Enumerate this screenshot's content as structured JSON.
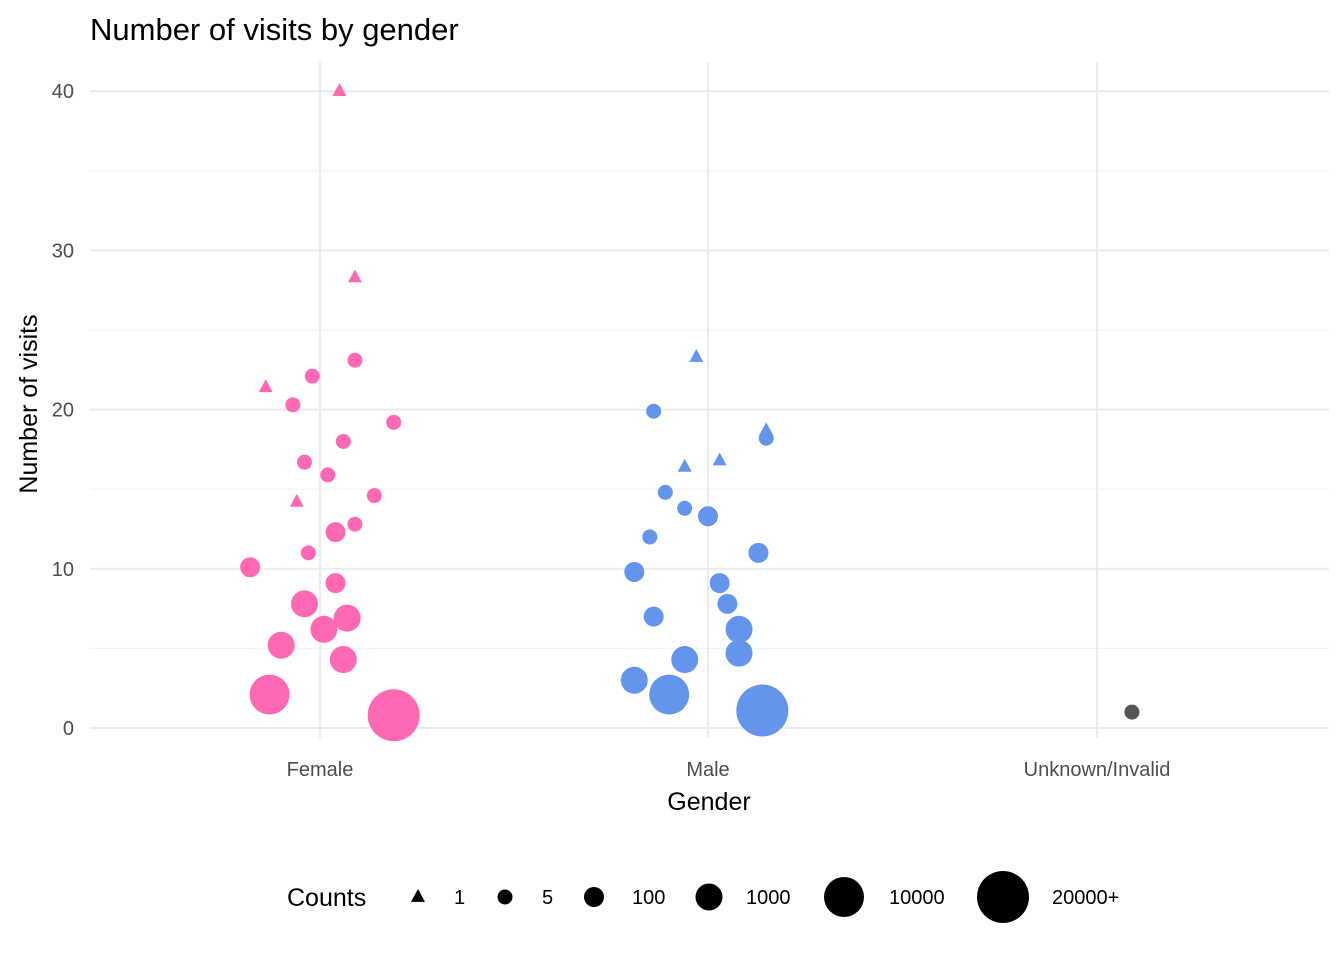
{
  "chart_data": {
    "type": "scatter",
    "title": "Number of visits by gender",
    "xlabel": "Gender",
    "ylabel": "Number of visits",
    "categories": [
      "Female",
      "Male",
      "Unknown/Invalid"
    ],
    "ylim": [
      -1.5,
      41.5
    ],
    "yticks": [
      0,
      10,
      20,
      30,
      40
    ],
    "grid": true,
    "legend_position": "bottom",
    "legend": {
      "title": "Counts",
      "entries": [
        {
          "label": "1",
          "shape": "triangle",
          "size_key": "1"
        },
        {
          "label": "5",
          "shape": "circle",
          "size_key": "5"
        },
        {
          "label": "100",
          "shape": "circle",
          "size_key": "100"
        },
        {
          "label": "1000",
          "shape": "circle",
          "size_key": "1000"
        },
        {
          "label": "10000",
          "shape": "circle",
          "size_key": "10000"
        },
        {
          "label": "20000+",
          "shape": "circle",
          "size_key": "20000+"
        }
      ]
    },
    "colors": {
      "Female": "#ff69b4",
      "Male": "#6495ed",
      "Unknown/Invalid": "#555555",
      "legend": "#000000"
    },
    "series": [
      {
        "category": "Female",
        "points": [
          {
            "offset": 0.05,
            "visits": 40,
            "counts": "1",
            "shape": "triangle"
          },
          {
            "offset": 0.09,
            "visits": 28.3,
            "counts": "1",
            "shape": "triangle"
          },
          {
            "offset": 0.09,
            "visits": 23.1,
            "counts": "5",
            "shape": "circle"
          },
          {
            "offset": -0.02,
            "visits": 22.1,
            "counts": "5",
            "shape": "circle"
          },
          {
            "offset": -0.14,
            "visits": 21.4,
            "counts": "1",
            "shape": "triangle"
          },
          {
            "offset": -0.07,
            "visits": 20.3,
            "counts": "5",
            "shape": "circle"
          },
          {
            "offset": 0.19,
            "visits": 19.2,
            "counts": "5",
            "shape": "circle"
          },
          {
            "offset": 0.06,
            "visits": 18,
            "counts": "5",
            "shape": "circle"
          },
          {
            "offset": -0.04,
            "visits": 16.7,
            "counts": "5",
            "shape": "circle"
          },
          {
            "offset": 0.02,
            "visits": 15.9,
            "counts": "5",
            "shape": "circle"
          },
          {
            "offset": 0.14,
            "visits": 14.6,
            "counts": "5",
            "shape": "circle"
          },
          {
            "offset": -0.06,
            "visits": 14.2,
            "counts": "1",
            "shape": "triangle"
          },
          {
            "offset": 0.09,
            "visits": 12.8,
            "counts": "5",
            "shape": "circle"
          },
          {
            "offset": 0.04,
            "visits": 12.3,
            "counts": "100",
            "shape": "circle"
          },
          {
            "offset": -0.03,
            "visits": 11,
            "counts": "5",
            "shape": "circle"
          },
          {
            "offset": -0.18,
            "visits": 10.1,
            "counts": "100",
            "shape": "circle"
          },
          {
            "offset": 0.04,
            "visits": 9.1,
            "counts": "100",
            "shape": "circle"
          },
          {
            "offset": -0.04,
            "visits": 7.8,
            "counts": "1000",
            "shape": "circle"
          },
          {
            "offset": 0.07,
            "visits": 6.9,
            "counts": "1000",
            "shape": "circle"
          },
          {
            "offset": 0.01,
            "visits": 6.2,
            "counts": "1000",
            "shape": "circle"
          },
          {
            "offset": -0.1,
            "visits": 5.2,
            "counts": "1000",
            "shape": "circle"
          },
          {
            "offset": 0.06,
            "visits": 4.3,
            "counts": "1000",
            "shape": "circle"
          },
          {
            "offset": -0.13,
            "visits": 2.1,
            "counts": "10000",
            "shape": "circle"
          },
          {
            "offset": 0.19,
            "visits": 0.8,
            "counts": "20000+",
            "shape": "circle"
          }
        ]
      },
      {
        "category": "Male",
        "points": [
          {
            "offset": -0.03,
            "visits": 23.3,
            "counts": "1",
            "shape": "triangle"
          },
          {
            "offset": -0.14,
            "visits": 19.9,
            "counts": "5",
            "shape": "circle"
          },
          {
            "offset": 0.15,
            "visits": 18.7,
            "counts": "1",
            "shape": "triangle"
          },
          {
            "offset": 0.15,
            "visits": 18.2,
            "counts": "5",
            "shape": "circle"
          },
          {
            "offset": 0.03,
            "visits": 16.8,
            "counts": "1",
            "shape": "triangle"
          },
          {
            "offset": -0.06,
            "visits": 16.4,
            "counts": "1",
            "shape": "triangle"
          },
          {
            "offset": -0.11,
            "visits": 14.8,
            "counts": "5",
            "shape": "circle"
          },
          {
            "offset": -0.06,
            "visits": 13.8,
            "counts": "5",
            "shape": "circle"
          },
          {
            "offset": 0.0,
            "visits": 13.3,
            "counts": "100",
            "shape": "circle"
          },
          {
            "offset": -0.15,
            "visits": 12,
            "counts": "5",
            "shape": "circle"
          },
          {
            "offset": 0.13,
            "visits": 11,
            "counts": "100",
            "shape": "circle"
          },
          {
            "offset": -0.19,
            "visits": 9.8,
            "counts": "100",
            "shape": "circle"
          },
          {
            "offset": 0.03,
            "visits": 9.1,
            "counts": "100",
            "shape": "circle"
          },
          {
            "offset": 0.05,
            "visits": 7.8,
            "counts": "100",
            "shape": "circle"
          },
          {
            "offset": -0.14,
            "visits": 7,
            "counts": "100",
            "shape": "circle"
          },
          {
            "offset": 0.08,
            "visits": 6.2,
            "counts": "1000",
            "shape": "circle"
          },
          {
            "offset": 0.08,
            "visits": 4.7,
            "counts": "1000",
            "shape": "circle"
          },
          {
            "offset": -0.06,
            "visits": 4.3,
            "counts": "1000",
            "shape": "circle"
          },
          {
            "offset": -0.19,
            "visits": 3,
            "counts": "1000",
            "shape": "circle"
          },
          {
            "offset": -0.1,
            "visits": 2.1,
            "counts": "10000",
            "shape": "circle"
          },
          {
            "offset": 0.14,
            "visits": 1.1,
            "counts": "20000+",
            "shape": "circle"
          }
        ]
      },
      {
        "category": "Unknown/Invalid",
        "points": [
          {
            "offset": 0.09,
            "visits": 1,
            "counts": "5",
            "shape": "circle"
          }
        ]
      }
    ]
  }
}
